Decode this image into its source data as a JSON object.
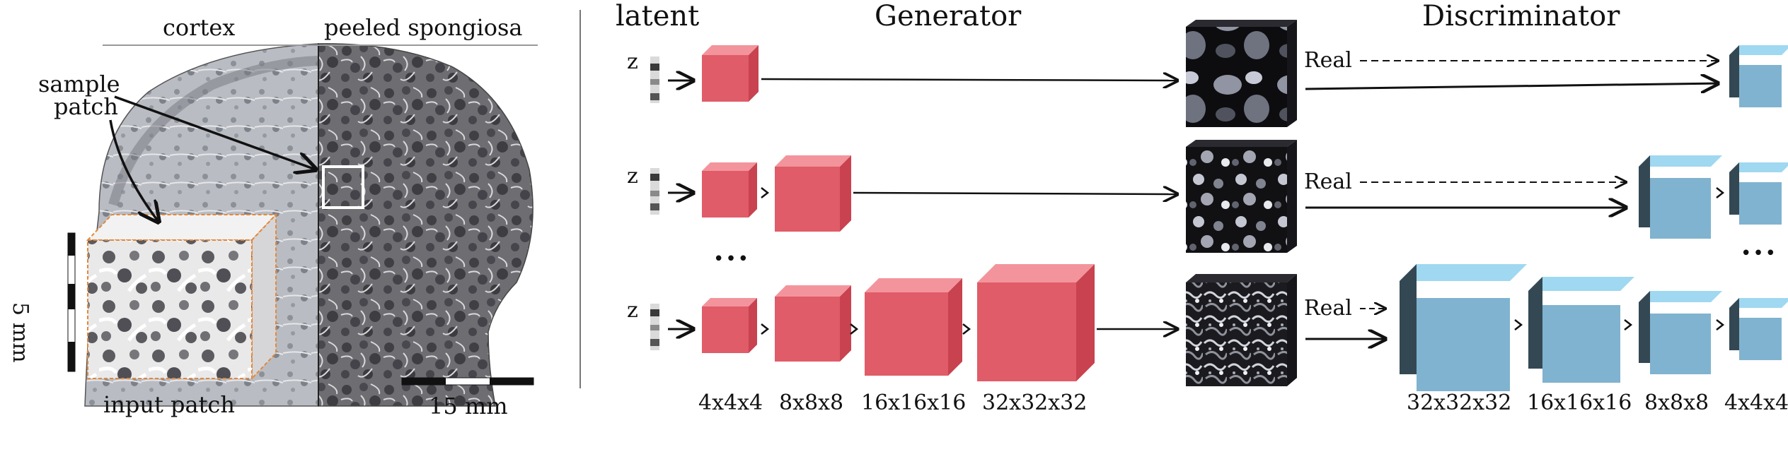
{
  "left_panel": {
    "cortex_label": "cortex",
    "peeled_label": "peeled spongiosa",
    "sample_label_line1": "sample",
    "sample_label_line2": "patch",
    "input_patch_label": "input patch",
    "scale_vertical": "5 mm",
    "scale_horizontal": "15 mm"
  },
  "headers": {
    "latent": "latent",
    "generator": "Generator",
    "discriminator": "Discriminator"
  },
  "rows": {
    "z_label": "z",
    "real_label": "Real",
    "ellipsis": "•••"
  },
  "dimensions": {
    "generator": [
      "4x4x4",
      "8x8x8",
      "16x16x16",
      "32x32x32"
    ],
    "discriminator": [
      "32x32x32",
      "16x16x16",
      "8x8x8",
      "4x4x4"
    ]
  },
  "colors": {
    "gen_front": "#e05c68",
    "gen_top": "#f3949c",
    "gen_side": "#c8424f",
    "disc_front": "#80b3cf",
    "disc_top": "#9fd8f0",
    "disc_side": "#344854"
  }
}
